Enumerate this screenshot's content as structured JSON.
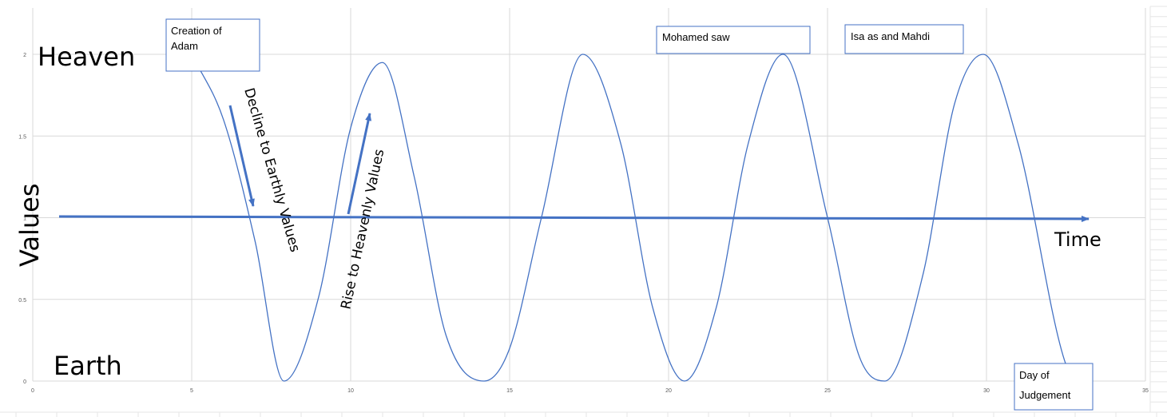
{
  "chart_data": {
    "type": "line",
    "title": "",
    "xlabel": "Time",
    "ylabel": "Values",
    "xlim": [
      0,
      35
    ],
    "ylim": [
      0,
      2
    ],
    "grid": true,
    "x_ticks": [
      0,
      5,
      10,
      15,
      20,
      25,
      30,
      35
    ],
    "y_ticks": [
      0,
      0.5,
      1,
      1.5,
      2
    ],
    "series": [
      {
        "color": "#4472C4",
        "x": [
          5,
          6,
          7,
          7.9,
          9,
          10,
          11,
          12,
          13,
          14.2,
          15,
          16,
          17.3,
          18.5,
          19.5,
          20.5,
          21.5,
          22.5,
          23.6,
          25,
          26,
          26.8,
          28,
          29,
          29.9,
          31,
          32.5,
          33
        ],
        "y": [
          2,
          1.6,
          0.85,
          0,
          0.52,
          1.55,
          1.95,
          1.25,
          0.28,
          0,
          0.2,
          1.0,
          2.0,
          1.45,
          0.45,
          0,
          0.45,
          1.45,
          2.0,
          1.0,
          0.15,
          0,
          0.65,
          1.7,
          2.0,
          1.45,
          0.1,
          0
        ]
      }
    ],
    "annotations": {
      "heaven": "Heaven",
      "earth": "Earth",
      "creation": "Creation of Adam",
      "creation_line1": "Creation of",
      "creation_line2": "Adam",
      "decline": "Decline to Earthly Values",
      "rise": "Rise to Heavenly Values",
      "mohamed": "Mohamed saw",
      "isa": "Isa as and Mahdi",
      "judgement": "Day of Judgement",
      "judgement_line1": "Day of",
      "judgement_line2": "Judgement"
    },
    "colors": {
      "curve": "#4472C4",
      "arrow": "#4472C4",
      "box_border": "#4472C4",
      "grid": "#D9D9D9"
    }
  }
}
